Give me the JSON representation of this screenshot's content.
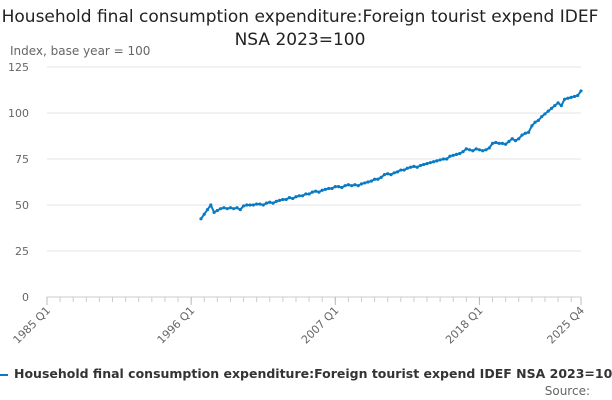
{
  "chart_data": {
    "type": "line",
    "title": "Household final consumption expenditure:Foreign tourist expend IDEF NSA 2023=100",
    "ylabel": "Index, base year = 100",
    "xlabel": "",
    "x_range": [
      "1985 Q1",
      "2025 Q4"
    ],
    "x_ticks": [
      "1985 Q1",
      "1996 Q1",
      "2007 Q1",
      "2018 Q1",
      "2025 Q4"
    ],
    "y_ticks": [
      0,
      25,
      50,
      75,
      100,
      125
    ],
    "ylim": [
      0,
      125
    ],
    "grid": "horizontal",
    "legend_position": "bottom",
    "series_color": "#0a7bc3",
    "series": [
      {
        "name": "Household final consumption expenditure:Foreign tourist expend IDEF NSA 2023=10",
        "start": "1996 Q4",
        "frequency": "quarterly",
        "values": [
          42.5,
          45,
          47.5,
          50,
          46,
          47,
          48,
          48.5,
          48,
          48.5,
          48,
          48.5,
          47.5,
          49.5,
          50,
          50,
          50,
          50.5,
          50.5,
          50,
          51,
          51.5,
          51,
          52,
          52.5,
          53,
          53,
          54,
          53.5,
          54.5,
          55,
          55,
          56,
          56,
          57,
          57.5,
          57,
          58,
          58.5,
          59,
          59,
          60,
          60,
          59.5,
          60.5,
          61,
          60.5,
          61,
          60.5,
          61.5,
          62,
          62.5,
          63,
          64,
          64,
          65,
          66.5,
          67,
          66.5,
          67.5,
          68,
          69,
          69,
          70,
          70.5,
          71,
          70.5,
          71.5,
          72,
          72.5,
          73,
          73.5,
          74,
          74.5,
          75,
          75,
          76.5,
          77,
          77.5,
          78,
          79,
          80.5,
          80,
          79.5,
          80.5,
          80,
          79.5,
          80,
          81,
          83.5,
          84,
          83.5,
          83.5,
          83,
          84.5,
          86,
          85,
          86,
          88,
          89,
          89.5,
          93,
          95,
          96,
          98,
          99.5,
          101,
          102.5,
          104,
          105.5,
          104,
          107.5,
          108,
          108.5,
          109,
          109.5,
          112
        ]
      }
    ]
  },
  "source_label": "Source:"
}
